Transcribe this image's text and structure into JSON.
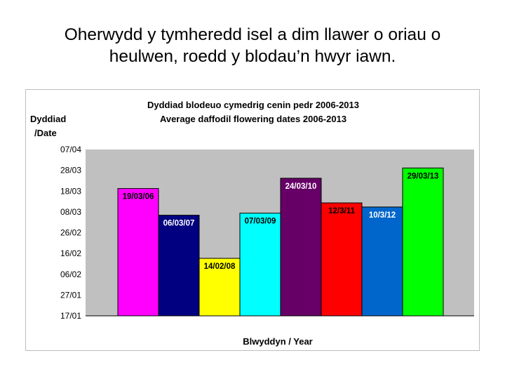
{
  "slide": {
    "title_line1": "Oherwydd y tymheredd isel a dim llawer o oriau o",
    "title_line2": "heulwen, roedd y blodau’n hwyr iawn."
  },
  "chart_data": {
    "type": "bar",
    "title": "Dyddiad blodeuo cymedrig cenin pedr 2006-2013",
    "subtitle": "Average daffodil flowering dates 2006-2013",
    "ylabel_line1": "Dyddiad",
    "ylabel_line2": "/Date",
    "xlabel": "Blwyddyn / Year",
    "y_ticks": [
      "07/04",
      "28/03",
      "18/03",
      "08/03",
      "26/02",
      "16/02",
      "06/02",
      "27/01",
      "17/01"
    ],
    "ylim": [
      "2000-01-17",
      "2000-04-07"
    ],
    "grid": false,
    "values": [
      "2000-03-19",
      "2000-03-06",
      "2000-02-14",
      "2000-03-07",
      "2000-03-24",
      "2000-03-12",
      "2000-03-10",
      "2000-03-29"
    ],
    "data_labels": [
      "19/03/06",
      "06/03/07",
      "14/02/08",
      "07/03/09",
      "24/03/10",
      "12/3/11",
      "10/3/12",
      "29/03/13"
    ],
    "colors": [
      "#ff00ff",
      "#000080",
      "#ffff00",
      "#00ffff",
      "#660066",
      "#ff0000",
      "#0066cc",
      "#00ff00"
    ],
    "label_colors": [
      "#000000",
      "#ffffff",
      "#000000",
      "#000000",
      "#ffffff",
      "#000000",
      "#ffffff",
      "#000000"
    ],
    "plot_background": "#c0c0c0"
  }
}
